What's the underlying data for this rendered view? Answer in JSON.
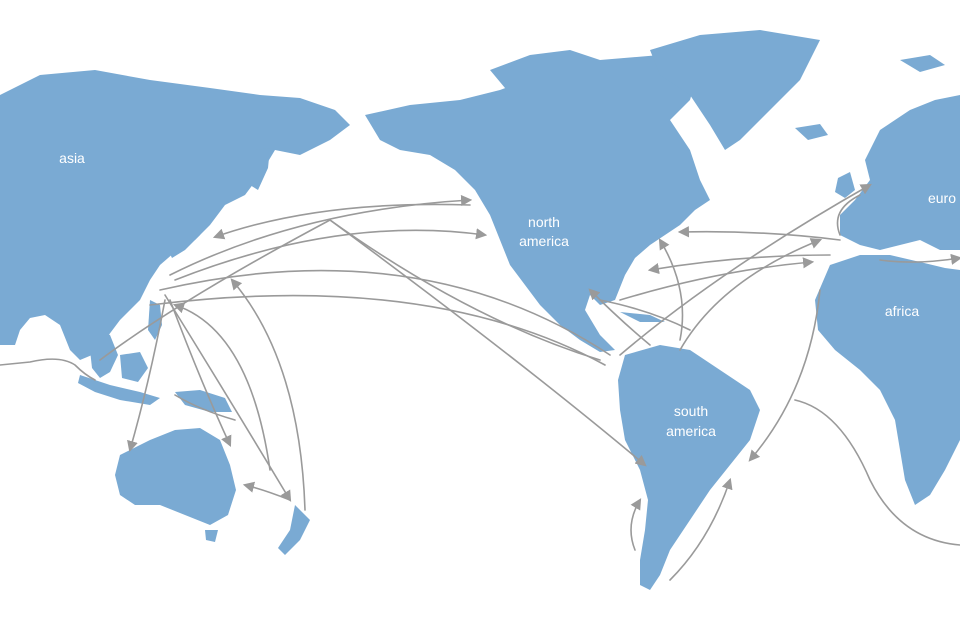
{
  "colors": {
    "land": "#7aaad3",
    "routes": "#9a9a9a",
    "labels": "#ffffff",
    "background": "#ffffff"
  },
  "labels": {
    "asia": "asia",
    "north_america_1": "north",
    "north_america_2": "america",
    "europe": "euro",
    "africa": "africa",
    "south_america_1": "south",
    "south_america_2": "america"
  }
}
